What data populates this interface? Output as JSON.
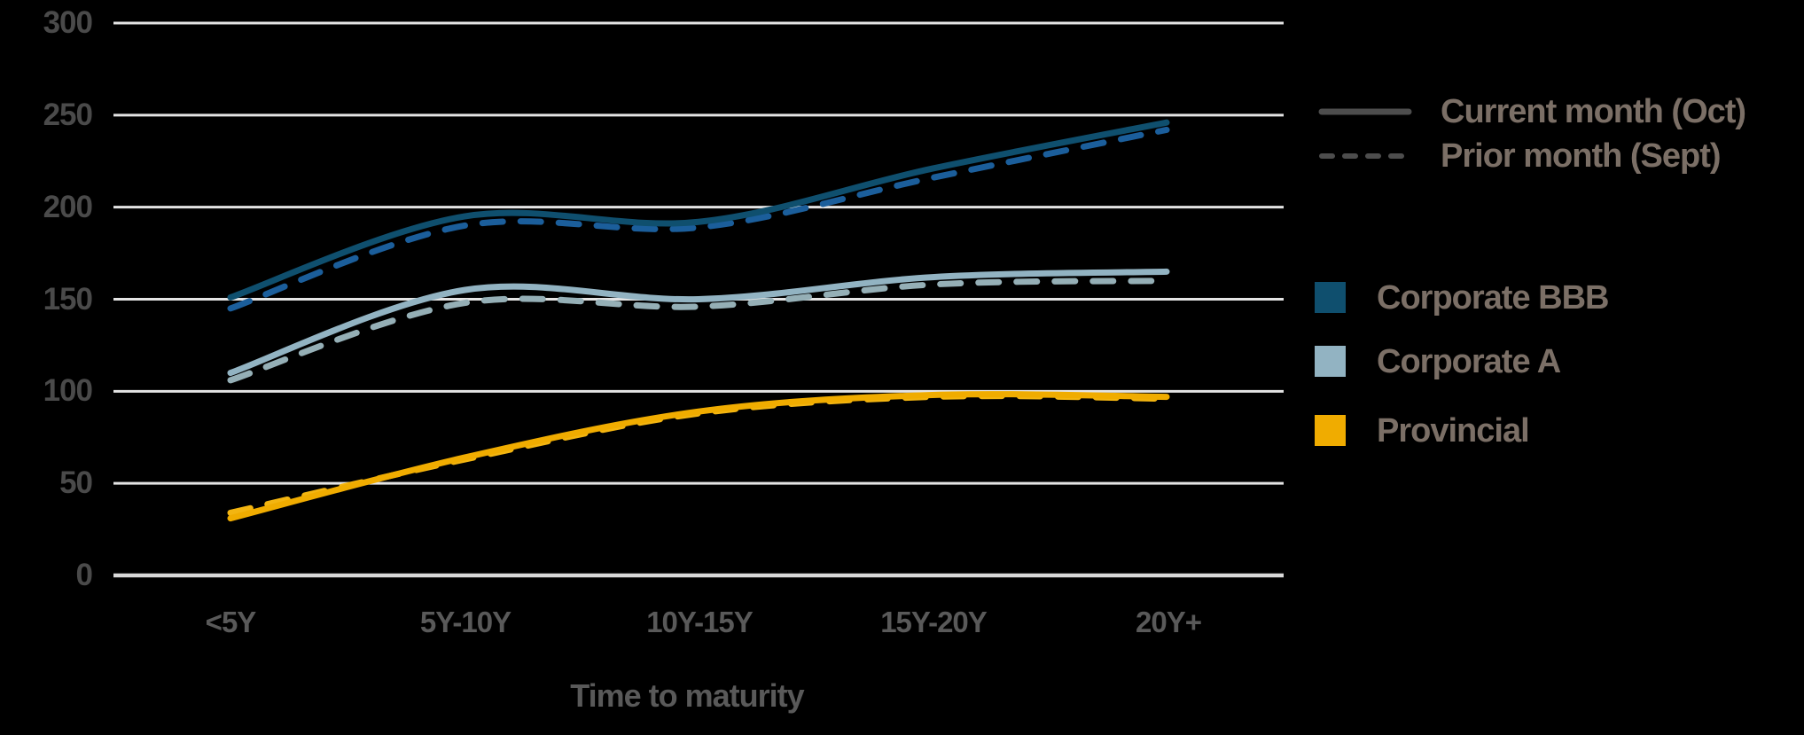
{
  "chart_data": {
    "type": "line",
    "title": "",
    "xlabel": "Time to maturity",
    "ylabel": "",
    "categories": [
      "<5Y",
      "5Y-10Y",
      "10Y-15Y",
      "15Y-20Y",
      "20Y+"
    ],
    "ylim": [
      0,
      300
    ],
    "ytick_interval": 50,
    "yticks": [
      300,
      250,
      200,
      150,
      100,
      50,
      0
    ],
    "grid": true,
    "legend_position": "right",
    "month_legend": [
      {
        "label": "Current month (Oct)",
        "style": "solid"
      },
      {
        "label": "Prior month (Sept)",
        "style": "dashed"
      }
    ],
    "series_legend": [
      {
        "label": "Corporate BBB",
        "color": "#0F4F6E"
      },
      {
        "label": "Corporate A",
        "color": "#92B3C2"
      },
      {
        "label": "Provincial",
        "color": "#F0AC00"
      }
    ],
    "series": [
      {
        "name": "Corporate BBB",
        "month": "Current month (Oct)",
        "style": "solid",
        "color": "#0F4F6E",
        "values": [
          151,
          195,
          192,
          221,
          246
        ]
      },
      {
        "name": "Corporate BBB",
        "month": "Prior month (Sept)",
        "style": "dashed",
        "color": "#1B5E9B",
        "values": [
          145,
          190,
          189,
          216,
          242
        ]
      },
      {
        "name": "Corporate A",
        "month": "Current month (Oct)",
        "style": "solid",
        "color": "#92B3C2",
        "values": [
          110,
          155,
          150,
          162,
          165
        ]
      },
      {
        "name": "Corporate A",
        "month": "Prior month (Sept)",
        "style": "dashed",
        "color": "#95AFB6",
        "values": [
          106,
          148,
          146,
          158,
          160
        ]
      },
      {
        "name": "Provincial",
        "month": "Current month (Oct)",
        "style": "solid",
        "color": "#F0AC00",
        "values": [
          31,
          64,
          89,
          98,
          97
        ]
      },
      {
        "name": "Provincial",
        "month": "Prior month (Sept)",
        "style": "dashed",
        "color": "#F3B511",
        "values": [
          34,
          63,
          88,
          97,
          96
        ]
      }
    ],
    "colors": {
      "background": "#000000",
      "gridline": "#E4E4E4",
      "axis_line": "#D9D9D9",
      "tick_label": "#4A4A4A",
      "category_label": "#595959",
      "axis_title": "#595959",
      "legend_text": "#7B6F66",
      "legend_line": "#4D4D4D"
    }
  }
}
